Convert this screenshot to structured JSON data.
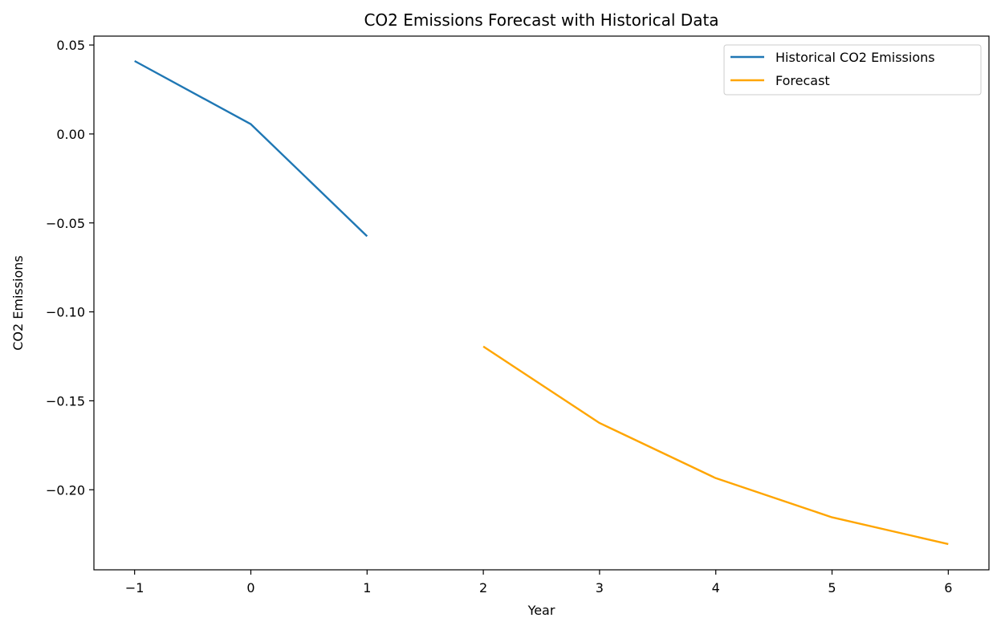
{
  "chart_data": {
    "type": "line",
    "title": "CO2 Emissions Forecast with Historical Data",
    "xlabel": "Year",
    "ylabel": "CO2 Emissions",
    "xlim": [
      -1.35,
      6.35
    ],
    "ylim": [
      -0.245,
      0.055
    ],
    "xticks": [
      -1,
      0,
      1,
      2,
      3,
      4,
      5,
      6
    ],
    "xtick_labels": [
      "−1",
      "0",
      "1",
      "2",
      "3",
      "4",
      "5",
      "6"
    ],
    "yticks": [
      0.05,
      0.0,
      -0.05,
      -0.1,
      -0.15,
      -0.2
    ],
    "ytick_labels": [
      "0.05",
      "0.00",
      "−0.05",
      "−0.10",
      "−0.15",
      "−0.20"
    ],
    "grid": false,
    "legend_position": "top-right",
    "series": [
      {
        "name": "Historical CO2 Emissions",
        "color": "#1f77b4",
        "x": [
          -1,
          0,
          1
        ],
        "y": [
          0.041,
          0.0055,
          -0.0575
        ]
      },
      {
        "name": "Forecast",
        "color": "#ffa500",
        "x": [
          2,
          3,
          4,
          5,
          6
        ],
        "y": [
          -0.1195,
          -0.1625,
          -0.1935,
          -0.2155,
          -0.2305
        ]
      }
    ]
  }
}
